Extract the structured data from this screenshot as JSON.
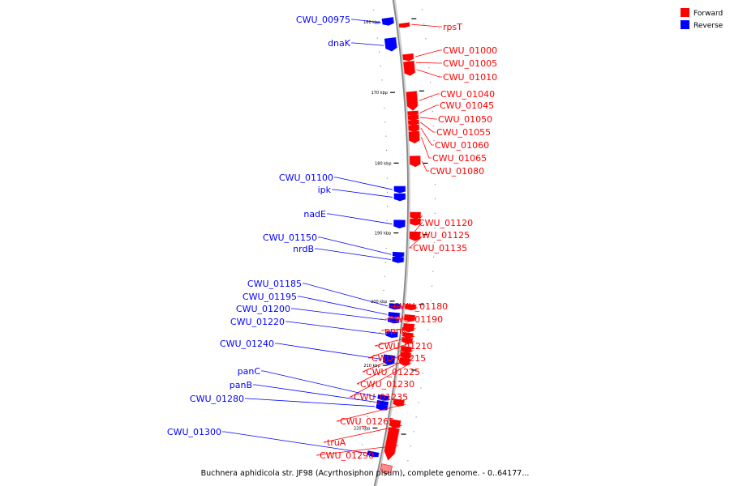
{
  "colors": {
    "forward": "#ff0000",
    "reverse": "#0000ff",
    "backbone": "#888888"
  },
  "legend": [
    {
      "label": "Forward",
      "color": "#ff0000"
    },
    {
      "label": "Reverse",
      "color": "#0000ff"
    }
  ],
  "caption": "Buchnera aphidicola str. JF98 (Acyrthosiphon pisum), complete genome. - 0..64177...",
  "ticks": [
    "160 kbp",
    "170 kbp",
    "180 kbp",
    "190 kbp",
    "200 kbp",
    "210 kbp",
    "220 kbp"
  ],
  "forward_genes": [
    "rpsT",
    "CWU_01000",
    "CWU_01005",
    "CWU_01010",
    "CWU_01040",
    "CWU_01045",
    "CWU_01050",
    "CWU_01055",
    "CWU_01060",
    "CWU_01065",
    "CWU_01080",
    "CWU_01120",
    "CWU_01125",
    "CWU_01135",
    "CWU_01180",
    "CWU_01190",
    "ppnK",
    "CWU_01210",
    "CWU_01215",
    "CWU_01225",
    "CWU_01230",
    "CWU_01235",
    "CWU_01265",
    "truA",
    "CWU_01290"
  ],
  "reverse_genes": [
    "CWU_00975",
    "dnaK",
    "CWU_01100",
    "ipk",
    "nadE",
    "CWU_01150",
    "nrdB",
    "CWU_01185",
    "CWU_01195",
    "CWU_01200",
    "CWU_01220",
    "CWU_01240",
    "panC",
    "panB",
    "CWU_01280",
    "CWU_01300"
  ]
}
